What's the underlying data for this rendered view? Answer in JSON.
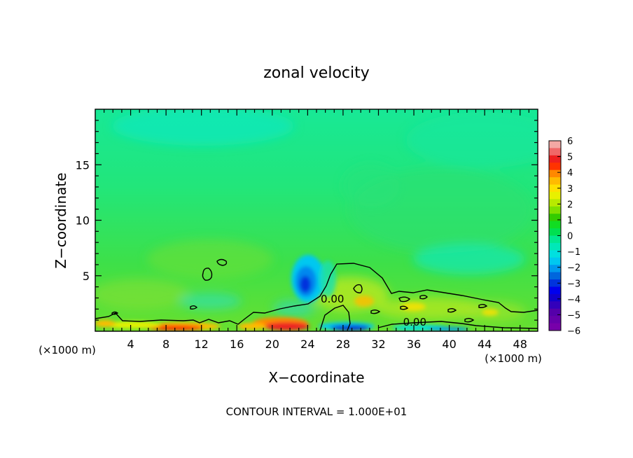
{
  "chart_data": {
    "type": "heatmap",
    "title": "zonal velocity",
    "xlabel": "X−coordinate",
    "ylabel": "Z−coordinate",
    "x_unit_left": "(×1000 m)",
    "x_unit_right": "(×1000 m)",
    "xlim": [
      0,
      50
    ],
    "ylim": [
      0,
      20
    ],
    "x_ticks": [
      4,
      8,
      12,
      16,
      20,
      24,
      28,
      32,
      36,
      40,
      44,
      48
    ],
    "y_ticks": [
      5,
      10,
      15
    ],
    "colorbar": {
      "labels": [
        "6",
        "5",
        "4",
        "3",
        "2",
        "1",
        "0",
        "−1",
        "−2",
        "−3",
        "−4",
        "−5",
        "−6"
      ],
      "values": [
        6,
        5,
        4,
        3,
        2,
        1,
        0,
        -1,
        -2,
        -3,
        -4,
        -5,
        -6
      ],
      "colors": [
        "#f4a8a4",
        "#f06868",
        "#ee2020",
        "#ff3300",
        "#ff8800",
        "#ffbb00",
        "#ffe000",
        "#e8f000",
        "#b8ea00",
        "#7ee000",
        "#33cc00",
        "#11dd22",
        "#00e050",
        "#00e890",
        "#00e8b8",
        "#00e0e0",
        "#00c8f0",
        "#0099ee",
        "#0066dd",
        "#0033dd",
        "#0000ee",
        "#1100cc",
        "#3300bb",
        "#5500aa",
        "#6600aa",
        "#7700aa"
      ]
    },
    "contour_labels": [
      "0.00",
      "0.00"
    ],
    "contour_label_positions": [
      [
        26.8,
        2.6
      ],
      [
        36.1,
        0.5
      ]
    ],
    "footer": "CONTOUR INTERVAL = 1.000E+01"
  }
}
